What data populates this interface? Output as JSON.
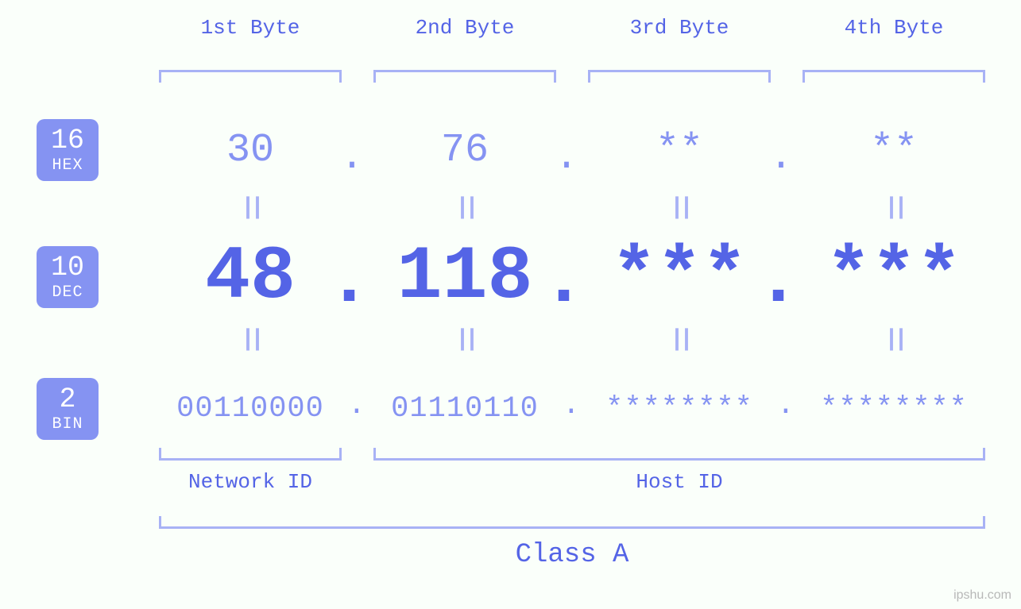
{
  "background_color": "#fafffa",
  "primary_color": "#5464e6",
  "secondary_color": "#8593f2",
  "bracket_color": "#a8b2f5",
  "badge_bg": "#8593f2",
  "badge_fg": "#ffffff",
  "font_family": "Courier New, monospace",
  "badges": {
    "hex": {
      "num": "16",
      "label": "HEX"
    },
    "dec": {
      "num": "10",
      "label": "DEC"
    },
    "bin": {
      "num": "2",
      "label": "BIN"
    }
  },
  "bytes": [
    {
      "header": "1st Byte",
      "hex": "30",
      "dec": "48",
      "bin": "00110000"
    },
    {
      "header": "2nd Byte",
      "hex": "76",
      "dec": "118",
      "bin": "01110110"
    },
    {
      "header": "3rd Byte",
      "hex": "**",
      "dec": "***",
      "bin": "********"
    },
    {
      "header": "4th Byte",
      "hex": "**",
      "dec": "***",
      "bin": "********"
    }
  ],
  "eq_symbol": "||",
  "dot_symbol": ".",
  "groups": {
    "network": {
      "label": "Network ID",
      "byte_start": 0,
      "byte_end": 0
    },
    "host": {
      "label": "Host ID",
      "byte_start": 1,
      "byte_end": 3
    }
  },
  "class_label": "Class A",
  "watermark": "ipshu.com",
  "style": {
    "hex_fontsize": 50,
    "dec_fontsize": 95,
    "bin_fontsize": 37,
    "header_fontsize": 26,
    "class_fontsize": 34,
    "badge_num_fontsize": 35,
    "badge_lab_fontsize": 20
  }
}
